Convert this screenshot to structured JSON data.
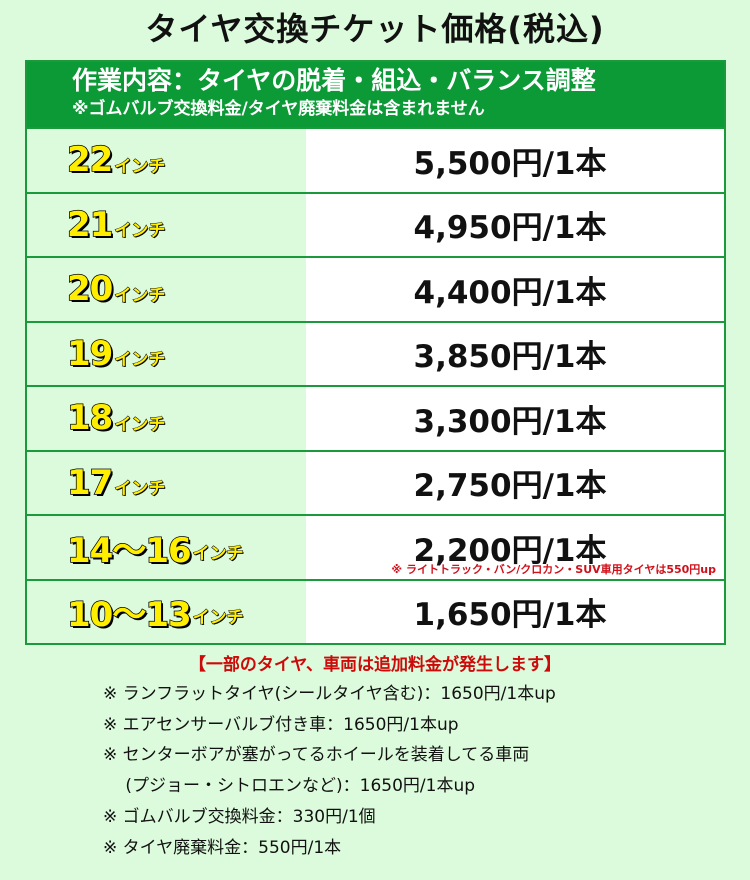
{
  "title": "タイヤ交換チケット価格(税込)",
  "header": {
    "line1": "作業内容：タイヤの脱着・組込・バランス調整",
    "line2": "※ゴムバルブ交換料金/タイヤ廃棄料金は含まれません"
  },
  "unit": "インチ",
  "rows": [
    {
      "size": "22",
      "price": "5,500円/1本"
    },
    {
      "size": "21",
      "price": "4,950円/1本"
    },
    {
      "size": "20",
      "price": "4,400円/1本"
    },
    {
      "size": "19",
      "price": "3,850円/1本"
    },
    {
      "size": "18",
      "price": "3,300円/1本"
    },
    {
      "size": "17",
      "price": "2,750円/1本"
    },
    {
      "size": "14〜16",
      "price": "2,200円/1本",
      "note": "※ ライトトラック・バン/クロカン・SUV車用タイヤは550円up"
    },
    {
      "size": "10〜13",
      "price": "1,650円/1本"
    }
  ],
  "warning": "【一部のタイヤ、車両は追加料金が発生します】",
  "notes": [
    "※ ランフラットタイヤ(シールタイヤ含む)：1650円/1本up",
    "※ エアセンサーバルブ付き車：1650円/1本up",
    "※ センターボアが塞がってるホイールを装着してる車両",
    "　 (プジョー・シトロエンなど)：1650円/1本up",
    "※ ゴムバルブ交換料金：330円/1個",
    "※ タイヤ廃棄料金：550円/1本"
  ],
  "colors": {
    "header_bg": "#0b9a36",
    "page_bg": "#dcfbdc",
    "size_text": "#ffee00",
    "warning": "#cc0a0a"
  }
}
